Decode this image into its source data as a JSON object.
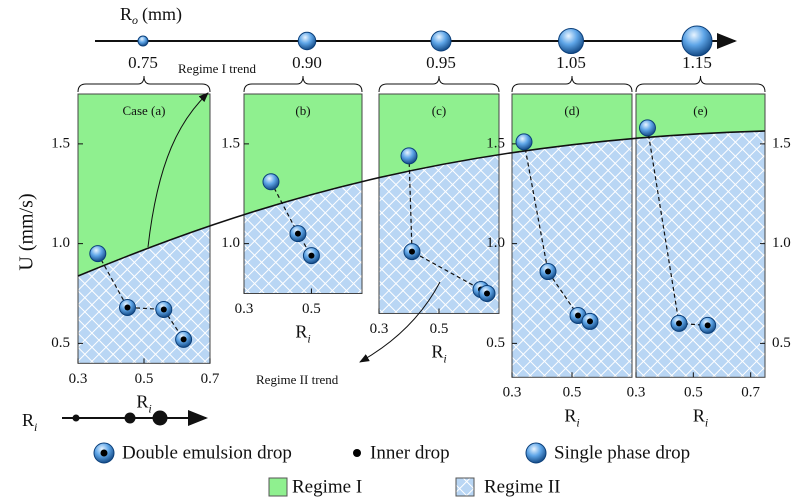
{
  "ro_axis": {
    "label_main": "R",
    "label_sub": "o",
    "label_unit": "(mm)",
    "values": [
      0.75,
      0.9,
      0.95,
      1.05,
      1.15
    ],
    "value_labels": [
      "0.75",
      "0.90",
      "0.95",
      "1.05",
      "1.15"
    ]
  },
  "y_axis_label": "U (mm/s)",
  "annotations": [
    "Regime I trend",
    "Regime II trend"
  ],
  "ri_axis": {
    "label_main": "R",
    "label_sub": "i"
  },
  "legend": [
    "Double emulsion drop",
    "Inner drop",
    "Single phase drop",
    "Regime I",
    "Regime II"
  ],
  "chart_data": [
    {
      "type": "scatter",
      "title": "Case (a)",
      "xlabel_main": "R",
      "xlabel_sub": "i",
      "xlim": [
        0.3,
        0.7
      ],
      "xticks": [
        0.3,
        0.5,
        0.7
      ],
      "ylim": [
        0.4,
        1.75
      ],
      "yticks": [
        0.5,
        {
          "value": 1.0,
          "label": "1.0"
        },
        1.5
      ],
      "single_phase": {
        "x": [
          0.36
        ],
        "y": [
          0.95
        ]
      },
      "double_emulsion": {
        "x": [
          0.45,
          0.56,
          0.62
        ],
        "y": [
          0.68,
          0.67,
          0.52
        ]
      }
    },
    {
      "type": "scatter",
      "title": "(b)",
      "xlabel_main": "R",
      "xlabel_sub": "i",
      "xlim": [
        0.3,
        0.65
      ],
      "xticks": [
        0.3,
        0.5
      ],
      "ylim": [
        0.75,
        1.75
      ],
      "yticks": [
        {
          "value": 1.0,
          "label": "1.0"
        },
        1.5
      ],
      "single_phase": {
        "x": [
          0.38
        ],
        "y": [
          1.31
        ]
      },
      "double_emulsion": {
        "x": [
          0.46,
          0.5
        ],
        "y": [
          1.05,
          0.94
        ]
      }
    },
    {
      "type": "scatter",
      "title": "(c)",
      "xlabel_main": "R",
      "xlabel_sub": "i",
      "xlim": [
        0.3,
        0.7
      ],
      "xticks": [
        0.3,
        0.5
      ],
      "ylim": [
        0.65,
        1.75
      ],
      "yticks": [],
      "single_phase": {
        "x": [
          0.4
        ],
        "y": [
          1.44
        ]
      },
      "double_emulsion": {
        "x": [
          0.41,
          0.64,
          0.66
        ],
        "y": [
          0.96,
          0.77,
          0.75
        ]
      }
    },
    {
      "type": "scatter",
      "title": "(d)",
      "xlabel_main": "R",
      "xlabel_sub": "i",
      "xlim": [
        0.3,
        0.7
      ],
      "xticks": [
        0.3,
        0.5
      ],
      "ylim": [
        0.33,
        1.75
      ],
      "yticks": [
        0.5,
        {
          "value": 1.0,
          "label": "1.0"
        },
        1.5
      ],
      "single_phase": {
        "x": [
          0.34
        ],
        "y": [
          1.51
        ]
      },
      "double_emulsion": {
        "x": [
          0.42,
          0.52,
          0.56
        ],
        "y": [
          0.86,
          0.64,
          0.61
        ]
      }
    },
    {
      "type": "scatter",
      "title": "(e)",
      "xlabel_main": "R",
      "xlabel_sub": "i",
      "xlim": [
        0.3,
        0.75
      ],
      "xticks": [
        0.3,
        0.5,
        0.7
      ],
      "ylim": [
        0.33,
        1.75
      ],
      "yticks": [
        0.5,
        {
          "value": 1.0,
          "label": "1.0"
        },
        1.5
      ],
      "single_phase": {
        "x": [
          0.34
        ],
        "y": [
          1.58
        ]
      },
      "double_emulsion": {
        "x": [
          0.45,
          0.55
        ],
        "y": [
          0.6,
          0.59
        ]
      }
    }
  ]
}
